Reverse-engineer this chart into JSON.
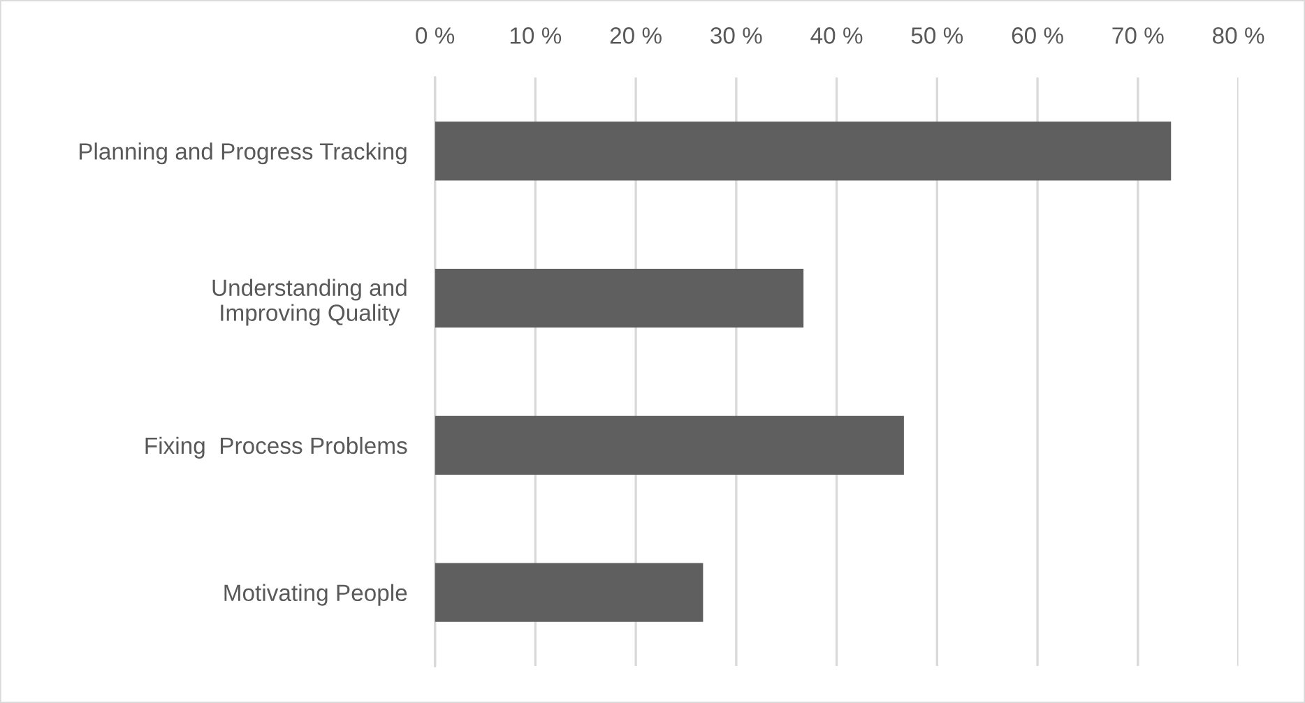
{
  "chart_data": {
    "type": "bar",
    "orientation": "horizontal",
    "categories": [
      "Planning and Progress Tracking",
      "Understanding and\nImproving Quality",
      "Fixing  Process Problems",
      "Motivating People"
    ],
    "values": [
      73.3,
      36.7,
      46.7,
      26.7
    ],
    "color": "#5f5f5f",
    "xlim": [
      0,
      80
    ],
    "xticks": [
      {
        "value": 0,
        "label": "0 %"
      },
      {
        "value": 10,
        "label": "10 %"
      },
      {
        "value": 20,
        "label": "20 %"
      },
      {
        "value": 30,
        "label": "30 %"
      },
      {
        "value": 40,
        "label": "40 %"
      },
      {
        "value": 50,
        "label": "50 %"
      },
      {
        "value": 60,
        "label": "60 %"
      },
      {
        "value": 70,
        "label": "70 %"
      },
      {
        "value": 80,
        "label": "80 %"
      }
    ],
    "grid": "x"
  }
}
